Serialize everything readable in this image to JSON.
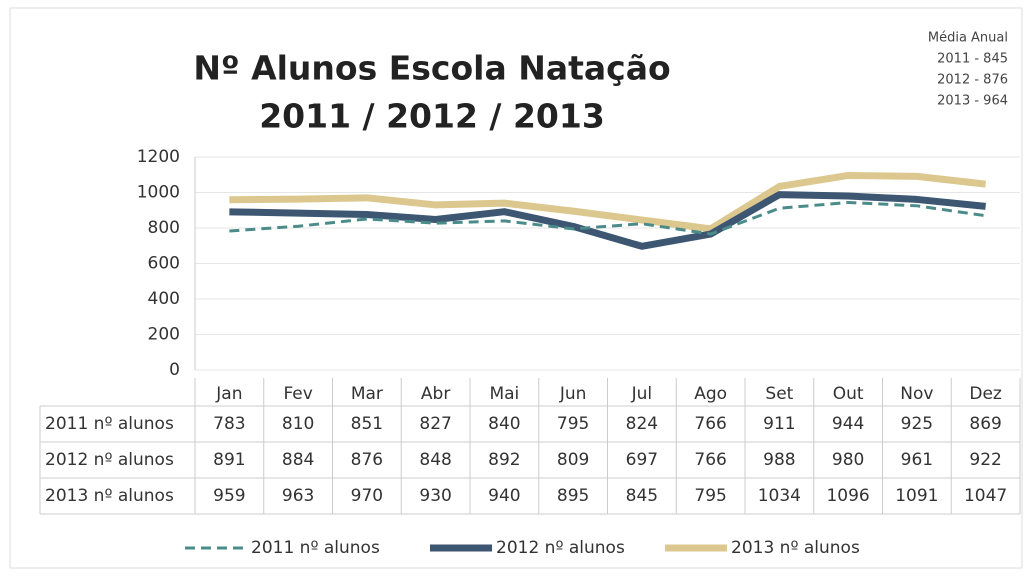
{
  "chart_data": {
    "type": "line",
    "title": "Nº Alunos Escola Natação",
    "subtitle": "2011 / 2012 / 2013",
    "annotations": [
      "Média Anual",
      "2011 - 845",
      "2012 - 876",
      "2013 - 964"
    ],
    "categories": [
      "Jan",
      "Fev",
      "Mar",
      "Abr",
      "Mai",
      "Jun",
      "Jul",
      "Ago",
      "Set",
      "Out",
      "Nov",
      "Dez"
    ],
    "series": [
      {
        "name": "2011 nº alunos",
        "color": "#4b8c8a",
        "line_style": "dashed",
        "values": [
          783,
          810,
          851,
          827,
          840,
          795,
          824,
          766,
          911,
          944,
          925,
          869
        ]
      },
      {
        "name": "2012 nº alunos",
        "color": "#3d5672",
        "line_style": "solid",
        "values": [
          891,
          884,
          876,
          848,
          892,
          809,
          697,
          766,
          988,
          980,
          961,
          922
        ]
      },
      {
        "name": "2013 nº alunos",
        "color": "#dcc88f",
        "line_style": "solid",
        "values": [
          959,
          963,
          970,
          930,
          940,
          895,
          845,
          795,
          1034,
          1096,
          1091,
          1047
        ]
      }
    ],
    "ylim": [
      0,
      1200
    ],
    "yticks": [
      0,
      200,
      400,
      600,
      800,
      1000,
      1200
    ],
    "grid": true,
    "legend": "bottom"
  }
}
